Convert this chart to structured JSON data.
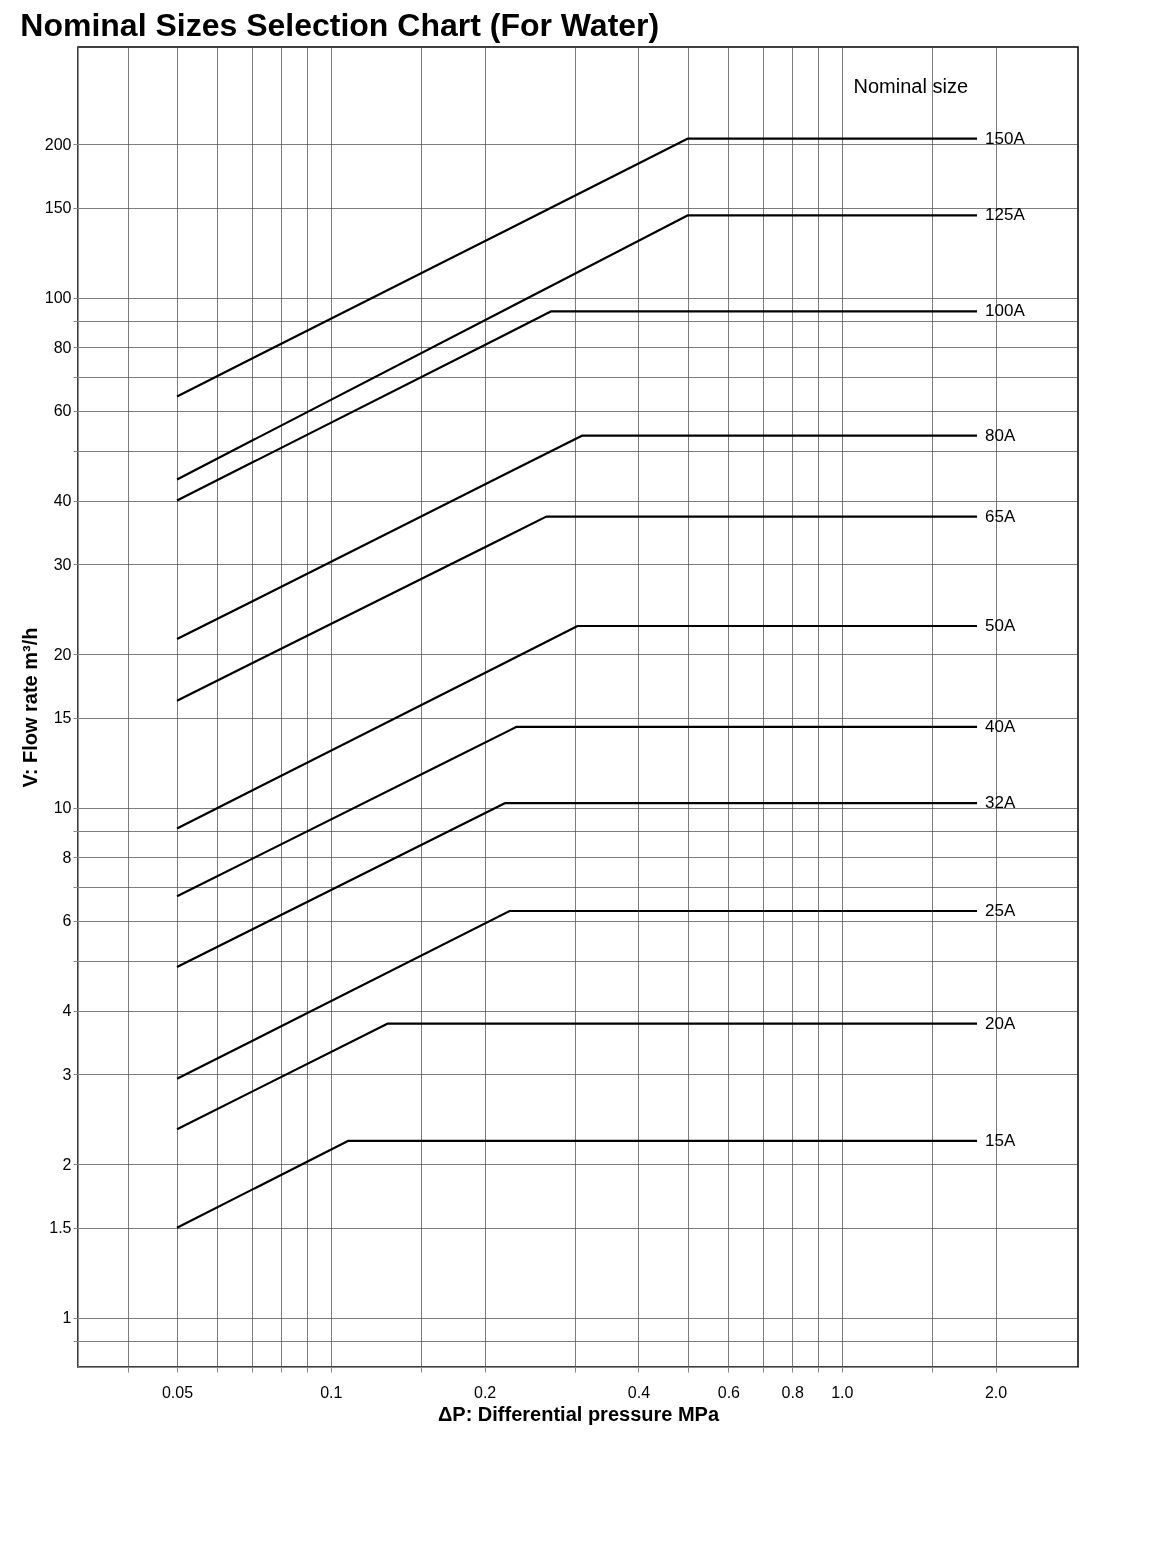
{
  "chart_data": {
    "type": "line",
    "title": "Nominal Sizes Selection Chart (For Water)",
    "xlabel": "ΔP: Differential pressure MPa",
    "ylabel": "V: Flow rate m³/h",
    "annotations": [
      "Nominal size"
    ],
    "log": "xy",
    "grid": true,
    "xlim": [
      0.032,
      2.9
    ],
    "ylim": [
      0.8,
      310
    ],
    "xticks": [
      {
        "value": 0.04,
        "label": null
      },
      0.05,
      {
        "value": 0.06,
        "label": null
      },
      {
        "value": 0.07,
        "label": null
      },
      {
        "value": 0.08,
        "label": null
      },
      {
        "value": 0.09,
        "label": null
      },
      0.1,
      {
        "value": 0.15,
        "label": null
      },
      0.2,
      {
        "value": 0.3,
        "label": null
      },
      0.4,
      {
        "value": 0.5,
        "label": null
      },
      0.6,
      {
        "value": 0.7,
        "label": null
      },
      0.8,
      {
        "value": 0.9,
        "label": null
      },
      {
        "value": 1,
        "label": "1.0"
      },
      {
        "value": 1.5,
        "label": null
      },
      {
        "value": 2,
        "label": "2.0"
      }
    ],
    "yticks": [
      {
        "value": 0.9,
        "label": null
      },
      1,
      1.5,
      2,
      3,
      4,
      {
        "value": 5,
        "label": null
      },
      6,
      {
        "value": 7,
        "label": null
      },
      8,
      {
        "value": 9,
        "label": null
      },
      10,
      15,
      20,
      30,
      40,
      {
        "value": 50,
        "label": null
      },
      60,
      {
        "value": 70,
        "label": null
      },
      80,
      {
        "value": 90,
        "label": null
      },
      100,
      150,
      200
    ],
    "series": [
      {
        "name": "150A",
        "color": "#000000",
        "x": [
          0.05,
          0.5,
          1.84
        ],
        "values": [
          64,
          205,
          205
        ]
      },
      {
        "name": "125A",
        "color": "#000000",
        "x": [
          0.05,
          0.5,
          1.84
        ],
        "values": [
          44,
          145,
          145
        ]
      },
      {
        "name": "100A",
        "color": "#000000",
        "x": [
          0.05,
          0.27,
          1.84
        ],
        "values": [
          40,
          94,
          94
        ]
      },
      {
        "name": "80A",
        "color": "#000000",
        "x": [
          0.05,
          0.31,
          1.84
        ],
        "values": [
          21.4,
          53.6,
          53.6
        ]
      },
      {
        "name": "65A",
        "color": "#000000",
        "x": [
          0.05,
          0.264,
          1.84
        ],
        "values": [
          16.2,
          37.2,
          37.2
        ]
      },
      {
        "name": "50A",
        "color": "#000000",
        "x": [
          0.05,
          0.304,
          1.84
        ],
        "values": [
          9.1,
          22.7,
          22.7
        ]
      },
      {
        "name": "40A",
        "color": "#000000",
        "x": [
          0.05,
          0.231,
          1.84
        ],
        "values": [
          6.7,
          14.4,
          14.4
        ]
      },
      {
        "name": "32A",
        "color": "#000000",
        "x": [
          0.05,
          0.219,
          1.84
        ],
        "values": [
          4.87,
          10.2,
          10.2
        ]
      },
      {
        "name": "25A",
        "color": "#000000",
        "x": [
          0.05,
          0.224,
          1.84
        ],
        "values": [
          2.94,
          6.27,
          6.27
        ]
      },
      {
        "name": "20A",
        "color": "#000000",
        "x": [
          0.05,
          0.129,
          1.84
        ],
        "values": [
          2.34,
          3.77,
          3.77
        ]
      },
      {
        "name": "15A",
        "color": "#000000",
        "x": [
          0.05,
          0.108,
          1.84
        ],
        "values": [
          1.5,
          2.22,
          2.22
        ]
      }
    ]
  }
}
